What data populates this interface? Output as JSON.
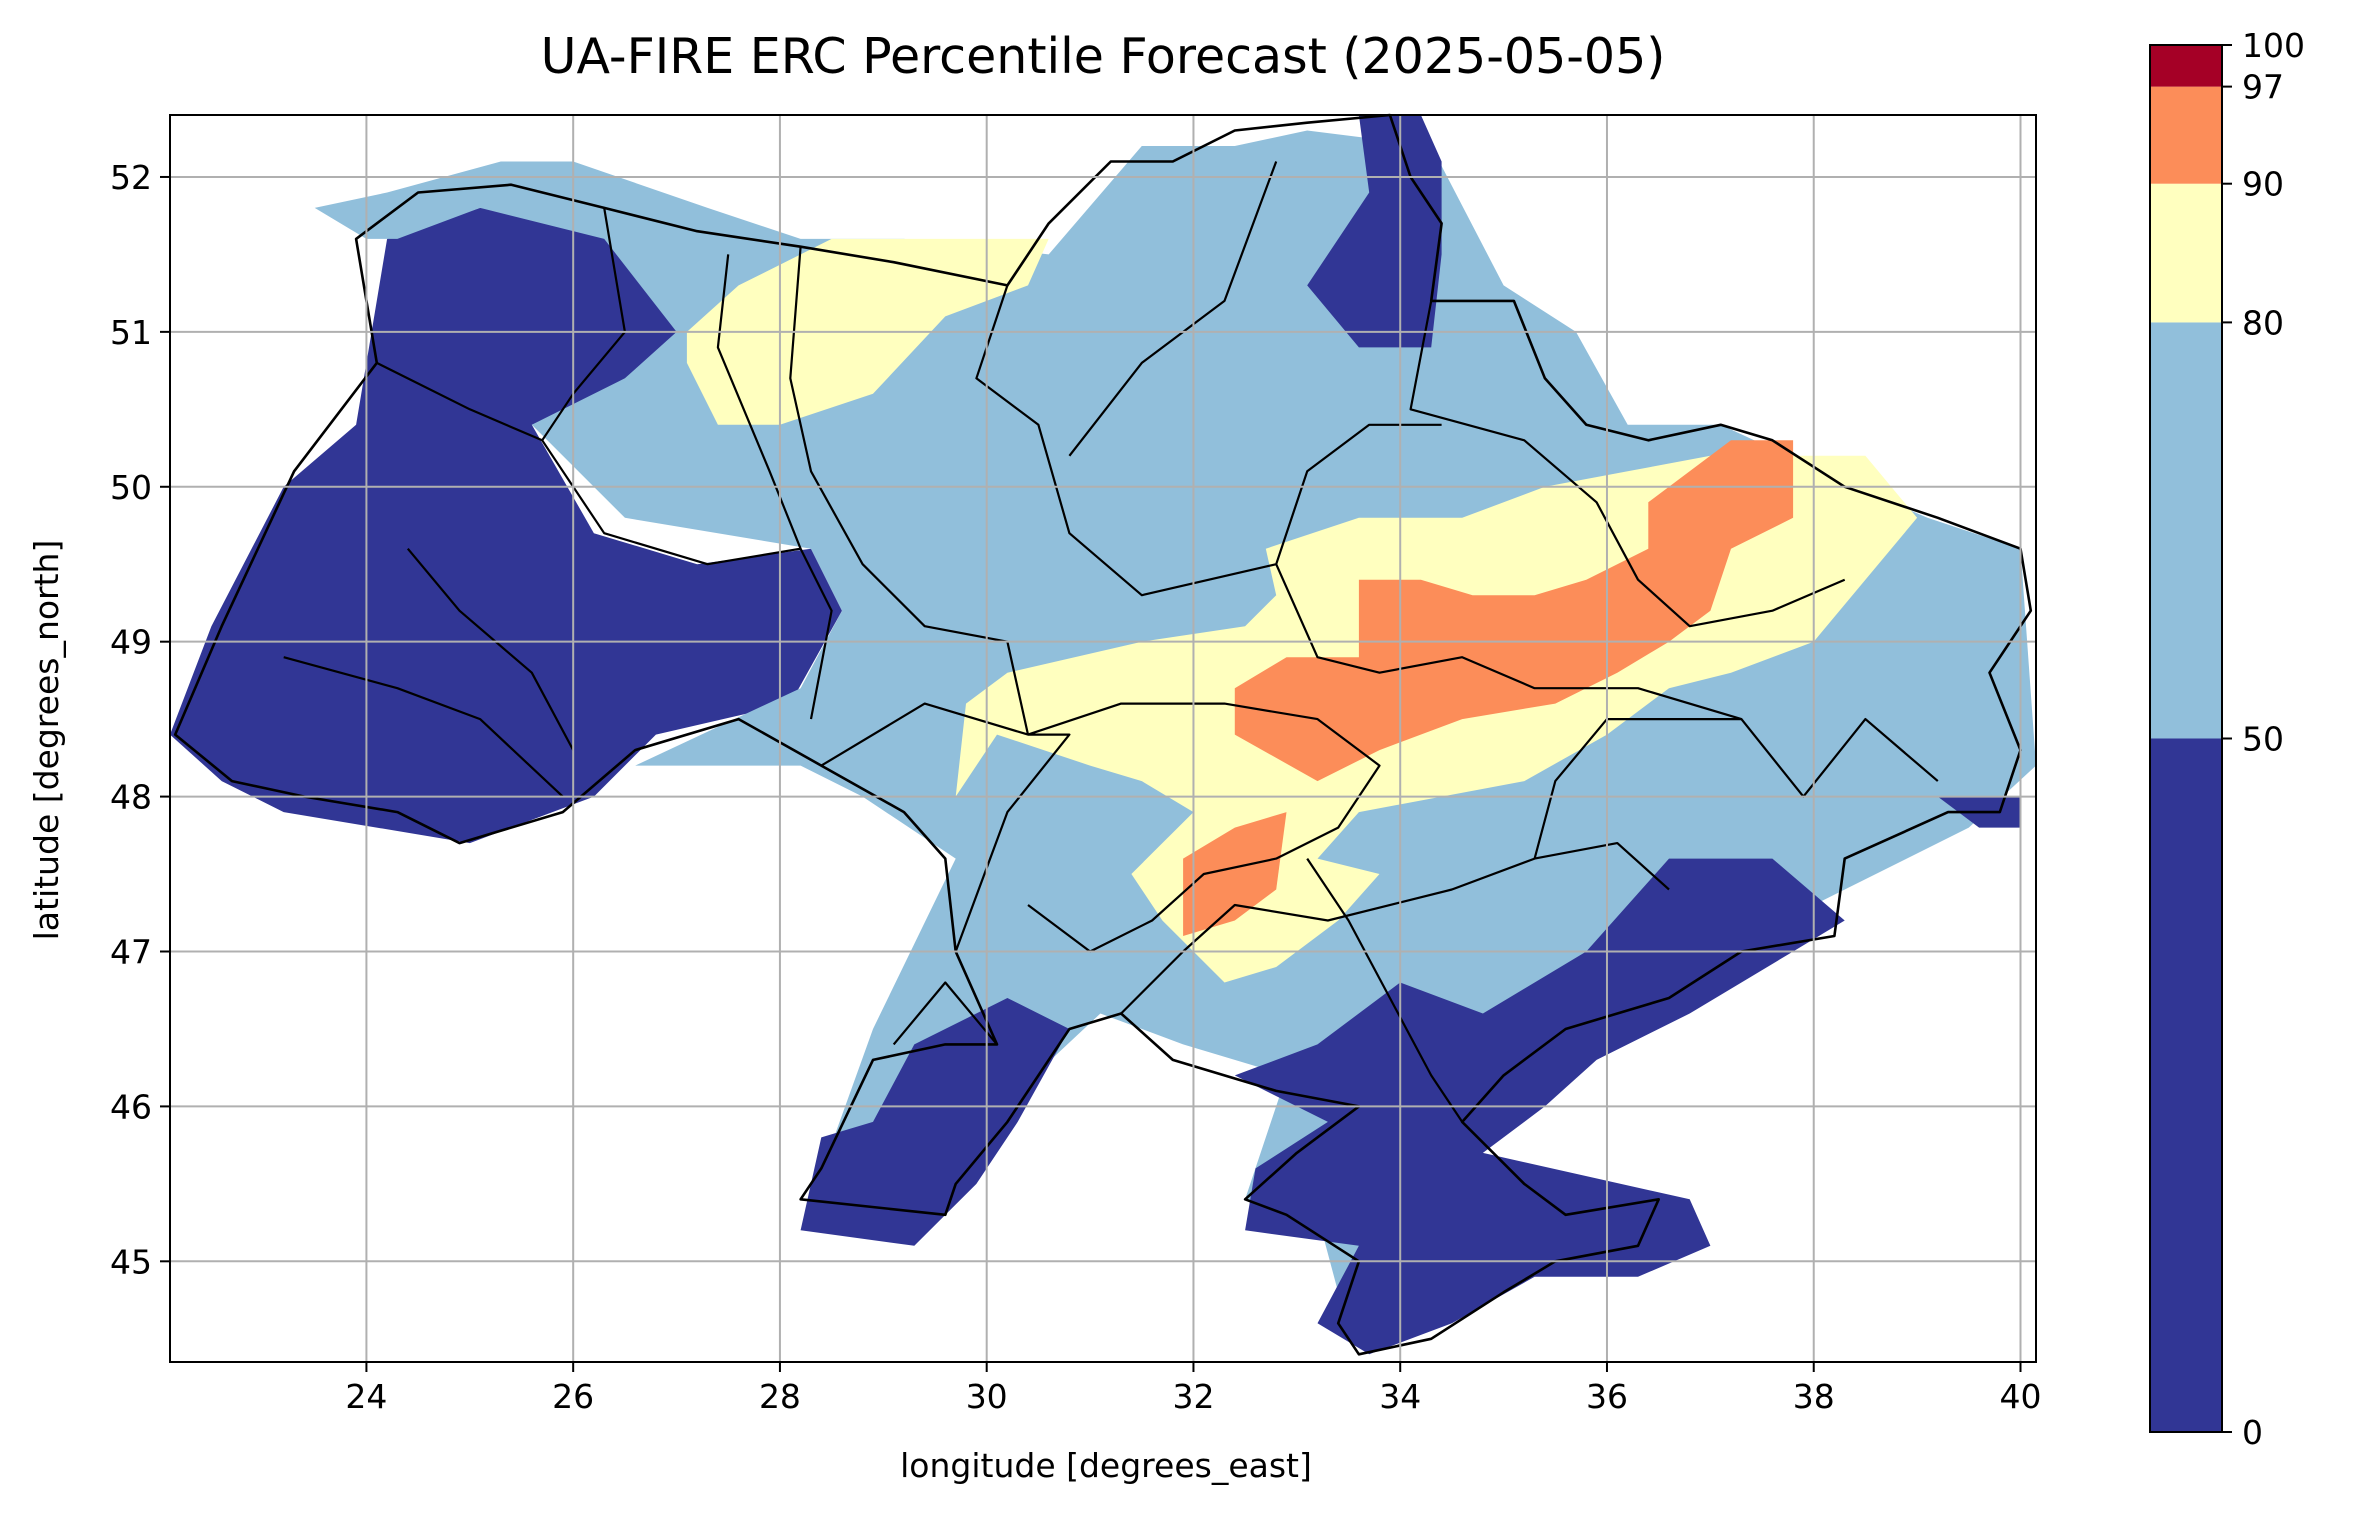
{
  "chart_data": {
    "type": "heatmap",
    "title": "UA-FIRE ERC Percentile Forecast (2025-05-05)",
    "xlabel": "longitude [degrees_east]",
    "ylabel": "latitude [degrees_north]",
    "xlim": [
      22.1,
      40.15
    ],
    "ylim": [
      44.35,
      52.4
    ],
    "grid": true,
    "x_ticks": [
      24,
      26,
      28,
      30,
      32,
      34,
      36,
      38,
      40
    ],
    "y_ticks": [
      45,
      46,
      47,
      48,
      49,
      50,
      51,
      52
    ],
    "colorbar": {
      "boundaries": [
        0,
        50,
        80,
        90,
        97,
        100
      ],
      "tick_labels": [
        "0",
        "50",
        "80",
        "90",
        "97",
        "100"
      ],
      "colors": [
        "#313695",
        "#91bfdb",
        "#ffffbf",
        "#fc8d59",
        "#a50026"
      ]
    },
    "regions": [
      {
        "category": "0-50",
        "polygon": [
          [
            22.1,
            48.4
          ],
          [
            22.5,
            49.1
          ],
          [
            23.2,
            50.0
          ],
          [
            23.9,
            50.4
          ],
          [
            24.2,
            51.6
          ],
          [
            25.1,
            51.8
          ],
          [
            26.4,
            51.7
          ],
          [
            27.0,
            51.0
          ],
          [
            26.5,
            50.6
          ],
          [
            25.6,
            50.4
          ],
          [
            26.2,
            49.7
          ],
          [
            27.2,
            49.5
          ],
          [
            28.3,
            49.6
          ],
          [
            28.6,
            49.2
          ],
          [
            28.1,
            48.6
          ],
          [
            26.8,
            48.4
          ],
          [
            26.2,
            48.0
          ],
          [
            25.0,
            47.7
          ],
          [
            23.2,
            47.9
          ],
          [
            22.6,
            48.1
          ]
        ]
      },
      {
        "category": "50-80",
        "polygon": [
          [
            24.0,
            51.6
          ],
          [
            23.5,
            51.8
          ],
          [
            24.2,
            51.9
          ],
          [
            25.3,
            52.1
          ],
          [
            26.0,
            52.1
          ],
          [
            27.3,
            51.8
          ],
          [
            28.2,
            51.6
          ],
          [
            29.2,
            51.6
          ],
          [
            30.6,
            51.5
          ],
          [
            31.5,
            52.2
          ],
          [
            32.4,
            52.2
          ],
          [
            33.1,
            52.3
          ],
          [
            34.3,
            52.2
          ],
          [
            35.0,
            51.3
          ],
          [
            35.7,
            51.0
          ],
          [
            36.2,
            50.4
          ],
          [
            37.1,
            50.4
          ],
          [
            38.4,
            50.0
          ],
          [
            39.1,
            49.8
          ],
          [
            40.0,
            49.6
          ],
          [
            40.15,
            48.2
          ],
          [
            39.5,
            47.8
          ],
          [
            38.0,
            47.3
          ],
          [
            37.6,
            47.2
          ],
          [
            36.2,
            46.8
          ],
          [
            35.6,
            46.6
          ],
          [
            34.9,
            46.1
          ],
          [
            34.4,
            45.7
          ],
          [
            34.1,
            44.9
          ],
          [
            33.4,
            44.8
          ],
          [
            33.2,
            45.3
          ],
          [
            32.5,
            45.4
          ],
          [
            32.9,
            46.2
          ],
          [
            31.9,
            46.4
          ],
          [
            31.1,
            46.6
          ],
          [
            30.3,
            46.1
          ],
          [
            29.9,
            45.6
          ],
          [
            28.2,
            45.2
          ],
          [
            28.9,
            46.5
          ],
          [
            29.7,
            47.6
          ],
          [
            28.8,
            48.0
          ],
          [
            28.2,
            48.2
          ],
          [
            26.6,
            48.2
          ],
          [
            28.2,
            48.7
          ],
          [
            28.6,
            49.2
          ],
          [
            28.3,
            49.6
          ],
          [
            26.5,
            49.8
          ],
          [
            25.6,
            50.4
          ],
          [
            26.5,
            50.7
          ],
          [
            27.0,
            51.0
          ],
          [
            26.3,
            51.6
          ],
          [
            25.1,
            51.8
          ],
          [
            24.3,
            51.6
          ]
        ]
      },
      {
        "category": "0-50",
        "polygon": [
          [
            28.2,
            45.2
          ],
          [
            28.4,
            45.8
          ],
          [
            28.9,
            45.9
          ],
          [
            29.3,
            46.4
          ],
          [
            30.2,
            46.7
          ],
          [
            30.8,
            46.5
          ],
          [
            30.3,
            45.9
          ],
          [
            29.9,
            45.5
          ],
          [
            29.3,
            45.1
          ]
        ]
      },
      {
        "category": "0-50",
        "polygon": [
          [
            32.4,
            46.2
          ],
          [
            33.2,
            46.4
          ],
          [
            34.0,
            46.8
          ],
          [
            34.8,
            46.6
          ],
          [
            35.8,
            47.0
          ],
          [
            36.6,
            47.6
          ],
          [
            37.6,
            47.6
          ],
          [
            38.3,
            47.2
          ],
          [
            37.8,
            47.0
          ],
          [
            36.8,
            46.6
          ],
          [
            35.9,
            46.3
          ],
          [
            35.4,
            46.0
          ],
          [
            34.8,
            45.7
          ],
          [
            36.8,
            45.4
          ],
          [
            37.0,
            45.1
          ],
          [
            36.3,
            44.9
          ],
          [
            35.3,
            44.9
          ],
          [
            34.5,
            44.6
          ],
          [
            33.7,
            44.4
          ],
          [
            33.2,
            44.6
          ],
          [
            33.6,
            45.1
          ],
          [
            32.5,
            45.2
          ],
          [
            32.6,
            45.6
          ],
          [
            33.3,
            45.9
          ]
        ]
      },
      {
        "category": "0-50",
        "polygon": [
          [
            33.6,
            52.4
          ],
          [
            33.7,
            51.9
          ],
          [
            33.1,
            51.3
          ],
          [
            33.6,
            50.9
          ],
          [
            34.3,
            50.9
          ],
          [
            34.4,
            51.5
          ],
          [
            34.4,
            52.1
          ],
          [
            34.2,
            52.4
          ]
        ]
      },
      {
        "category": "0-50",
        "polygon": [
          [
            39.2,
            48.0
          ],
          [
            39.6,
            47.8
          ],
          [
            40.0,
            47.8
          ],
          [
            40.0,
            48.0
          ]
        ]
      },
      {
        "category": "80-90",
        "polygon": [
          [
            27.1,
            51.0
          ],
          [
            27.6,
            51.3
          ],
          [
            28.5,
            51.6
          ],
          [
            29.8,
            51.6
          ],
          [
            30.6,
            51.6
          ],
          [
            30.4,
            51.3
          ],
          [
            29.6,
            51.1
          ],
          [
            28.9,
            50.6
          ],
          [
            28.0,
            50.4
          ],
          [
            27.4,
            50.4
          ],
          [
            27.1,
            50.8
          ]
        ]
      },
      {
        "category": "80-90",
        "polygon": [
          [
            32.7,
            49.6
          ],
          [
            33.6,
            49.8
          ],
          [
            34.6,
            49.8
          ],
          [
            35.4,
            50.0
          ],
          [
            36.2,
            50.1
          ],
          [
            37.0,
            50.2
          ],
          [
            38.5,
            50.2
          ],
          [
            39.0,
            49.8
          ],
          [
            38.5,
            49.4
          ],
          [
            38.0,
            49.0
          ],
          [
            37.2,
            48.8
          ],
          [
            36.6,
            48.7
          ],
          [
            36.0,
            48.4
          ],
          [
            35.2,
            48.1
          ],
          [
            34.4,
            48.0
          ],
          [
            33.6,
            47.9
          ],
          [
            33.2,
            47.6
          ],
          [
            33.8,
            47.5
          ],
          [
            33.4,
            47.2
          ],
          [
            32.8,
            46.9
          ],
          [
            32.3,
            46.8
          ],
          [
            31.7,
            47.2
          ],
          [
            31.4,
            47.5
          ],
          [
            32.0,
            47.9
          ],
          [
            31.5,
            48.1
          ],
          [
            31.0,
            48.2
          ],
          [
            30.1,
            48.4
          ],
          [
            29.7,
            48.0
          ],
          [
            29.8,
            48.6
          ],
          [
            30.2,
            48.8
          ],
          [
            31.5,
            49.0
          ],
          [
            32.5,
            49.1
          ],
          [
            32.8,
            49.3
          ]
        ]
      },
      {
        "category": "90-97",
        "polygon": [
          [
            33.6,
            49.4
          ],
          [
            34.2,
            49.4
          ],
          [
            34.7,
            49.3
          ],
          [
            35.3,
            49.3
          ],
          [
            35.8,
            49.4
          ],
          [
            36.4,
            49.6
          ],
          [
            36.4,
            49.9
          ],
          [
            37.2,
            50.3
          ],
          [
            37.8,
            50.3
          ],
          [
            37.8,
            49.8
          ],
          [
            37.2,
            49.6
          ],
          [
            37.0,
            49.2
          ],
          [
            36.6,
            49.0
          ],
          [
            36.1,
            48.8
          ],
          [
            35.5,
            48.6
          ],
          [
            34.6,
            48.5
          ],
          [
            33.8,
            48.3
          ],
          [
            33.2,
            48.1
          ],
          [
            32.4,
            48.4
          ],
          [
            32.4,
            48.7
          ],
          [
            32.9,
            48.9
          ],
          [
            33.6,
            48.9
          ]
        ]
      },
      {
        "category": "90-97",
        "polygon": [
          [
            31.9,
            47.6
          ],
          [
            32.4,
            47.8
          ],
          [
            32.9,
            47.9
          ],
          [
            32.8,
            47.4
          ],
          [
            32.4,
            47.2
          ],
          [
            31.9,
            47.1
          ]
        ]
      }
    ]
  }
}
